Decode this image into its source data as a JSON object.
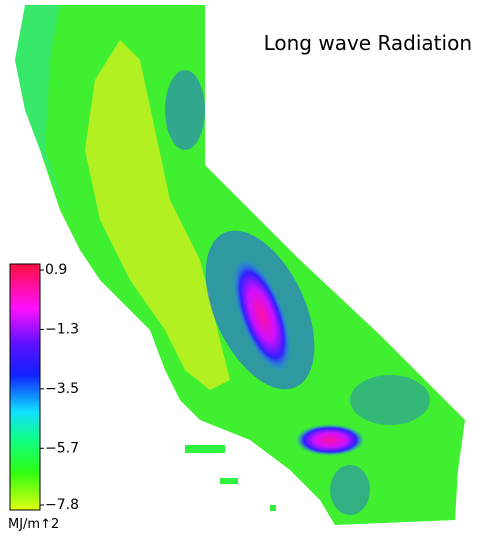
{
  "title": "Long wave Radiation",
  "colorbar": {
    "unit": "MJ/m↑2",
    "lim": [
      -7.8,
      0.9
    ],
    "ticks": [
      {
        "value": 0.9,
        "label": "0.9"
      },
      {
        "value": -1.3,
        "label": "−1.3"
      },
      {
        "value": -3.5,
        "label": "−3.5"
      },
      {
        "value": -5.7,
        "label": "−5.7"
      },
      {
        "value": -7.8,
        "label": "−7.8"
      }
    ]
  }
}
